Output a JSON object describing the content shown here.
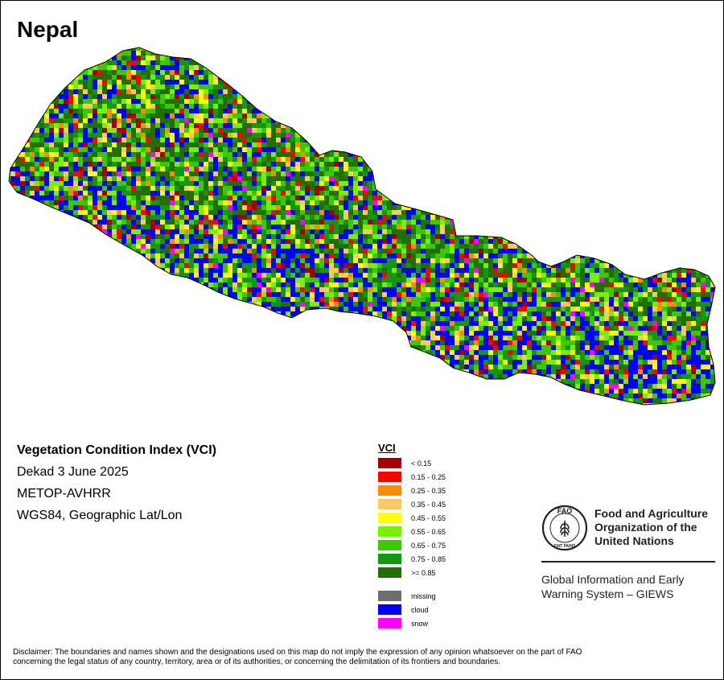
{
  "map": {
    "title": "Nepal"
  },
  "info": {
    "product": "Vegetation Condition Index (VCI)",
    "period": "Dekad 3 June 2025",
    "sensor": "METOP-AVHRR",
    "projection": "WGS84, Geographic Lat/Lon"
  },
  "legend": {
    "title": "VCI",
    "classes": [
      {
        "label": "< 0.15",
        "color": "#a50000"
      },
      {
        "label": "0.15 - 0.25",
        "color": "#ff0000"
      },
      {
        "label": "0.25 - 0.35",
        "color": "#ff8c00"
      },
      {
        "label": "0.35 - 0.45",
        "color": "#ffc864"
      },
      {
        "label": "0.45 - 0.55",
        "color": "#ffff00"
      },
      {
        "label": "0.55 - 0.65",
        "color": "#78f000"
      },
      {
        "label": "0.65 - 0.75",
        "color": "#3cc800"
      },
      {
        "label": "0.75 - 0.85",
        "color": "#149614"
      },
      {
        "label": ">= 0.85",
        "color": "#236e00"
      }
    ],
    "special": [
      {
        "label": "missing",
        "color": "#6e6e6e"
      },
      {
        "label": "cloud",
        "color": "#0000ff"
      },
      {
        "label": "snow",
        "color": "#ff00ff"
      }
    ]
  },
  "fao": {
    "logo_text": "FAO",
    "logo_motto": "FIAT PANIS",
    "name_line1": "Food and Agriculture",
    "name_line2": "Organization of the",
    "name_line3": "United Nations",
    "giews_line1": "Global Information and Early",
    "giews_line2": "Warning System – GIEWS"
  },
  "disclaimer": {
    "line1": "Disclaimer: The boundaries and names shown and the designations used on this map do not imply the expression of any opinion whatsoever on the part of FAO",
    "line2": "concerning the legal status of any country, territory, area or of its authorities, or concerning the delimitation of its frontiers and boundaries."
  }
}
